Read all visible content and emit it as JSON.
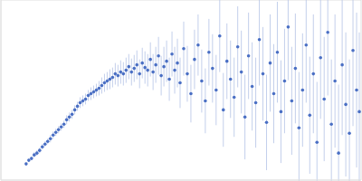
{
  "chart_data": {
    "type": "scatter",
    "x": [
      28,
      31,
      34,
      37,
      40,
      43,
      46,
      49,
      52,
      55,
      58,
      61,
      64,
      67,
      70,
      73,
      76,
      79,
      82,
      85,
      88,
      91,
      94,
      97,
      100,
      103,
      106,
      109,
      112,
      115,
      118,
      121,
      124,
      127,
      130,
      133,
      136,
      139,
      142,
      145,
      148,
      151,
      154,
      157,
      160,
      163,
      166,
      169,
      172,
      175,
      178,
      181,
      184,
      187,
      190,
      193,
      196,
      199,
      203,
      207,
      211,
      215,
      219,
      223,
      227,
      231,
      235,
      239,
      243,
      247,
      251,
      255,
      259,
      263,
      267,
      271,
      275,
      279,
      283,
      287,
      291,
      295,
      299,
      303,
      307,
      311,
      315,
      319,
      323,
      327,
      331,
      335,
      339,
      343,
      347,
      351,
      355,
      359,
      363,
      367,
      371,
      375,
      379,
      383,
      387,
      391,
      395,
      398
    ],
    "values": [
      18,
      22,
      24,
      28,
      30,
      33,
      37,
      40,
      43,
      46,
      50,
      53,
      56,
      59,
      62,
      67,
      70,
      73,
      78,
      82,
      86,
      88,
      90,
      94,
      96,
      98,
      100,
      102,
      105,
      108,
      110,
      112,
      114,
      118,
      116,
      120,
      118,
      122,
      126,
      120,
      124,
      128,
      118,
      130,
      125,
      122,
      134,
      120,
      128,
      138,
      116,
      126,
      132,
      112,
      140,
      122,
      130,
      108,
      146,
      118,
      96,
      134,
      150,
      110,
      88,
      142,
      124,
      100,
      160,
      78,
      132,
      112,
      92,
      148,
      120,
      70,
      138,
      104,
      86,
      156,
      118,
      64,
      130,
      96,
      142,
      76,
      110,
      170,
      88,
      124,
      58,
      100,
      150,
      72,
      118,
      42,
      136,
      90,
      164,
      62,
      110,
      30,
      128,
      84,
      52,
      144,
      100,
      76
    ],
    "errors": [
      2,
      2,
      2,
      3,
      3,
      3,
      3,
      3,
      3,
      4,
      4,
      4,
      4,
      4,
      4,
      5,
      5,
      5,
      5,
      5,
      6,
      6,
      6,
      6,
      7,
      7,
      7,
      8,
      9,
      10,
      10,
      11,
      11,
      12,
      12,
      13,
      13,
      14,
      14,
      15,
      15,
      16,
      16,
      17,
      18,
      18,
      19,
      20,
      20,
      21,
      22,
      22,
      23,
      24,
      25,
      26,
      27,
      28,
      30,
      31,
      32,
      33,
      34,
      35,
      36,
      37,
      38,
      39,
      40,
      41,
      42,
      43,
      44,
      45,
      46,
      47,
      48,
      49,
      50,
      51,
      52,
      53,
      54,
      55,
      56,
      57,
      58,
      59,
      60,
      61,
      62,
      63,
      64,
      65,
      66,
      67,
      68,
      69,
      70,
      72,
      74,
      76,
      78,
      80,
      82,
      84,
      86,
      88
    ],
    "color": "#4a6fc4",
    "xlim": [
      0,
      400
    ],
    "ylim": [
      0,
      200
    ],
    "xticks": [
      115
    ],
    "yticks": [
      100
    ],
    "grid": true,
    "tick_labels": false,
    "marker": "circle"
  }
}
